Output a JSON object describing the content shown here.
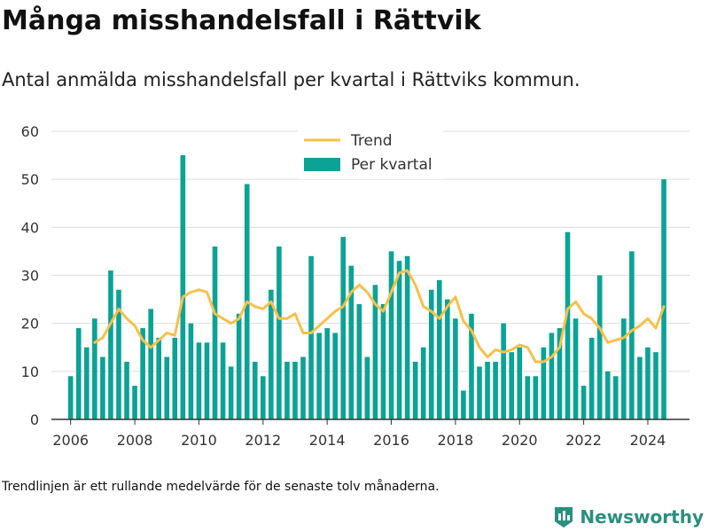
{
  "title": "Många misshandelsfall i Rättvik",
  "subtitle": "Antal anmälda misshandelsfall per kvartal i Rättviks kommun.",
  "footnote": "Trendlinjen är ett rullande medelvärde för de senaste tolv månaderna.",
  "brand": {
    "name": "Newsworthy",
    "icon": "bar-chart-logo-icon"
  },
  "colors": {
    "bars": "#0aa395",
    "trend": "#f7c04a",
    "grid": "#dddddd",
    "axis": "#333333"
  },
  "chart_data": {
    "type": "bar",
    "legend_position": "top-center",
    "grid": true,
    "ylim": [
      0,
      60
    ],
    "yticks": [
      0,
      10,
      20,
      30,
      40,
      50,
      60
    ],
    "xlim": [
      2005.4,
      2025.3
    ],
    "xticks": [
      2006,
      2008,
      2010,
      2012,
      2014,
      2016,
      2018,
      2020,
      2022,
      2024
    ],
    "legend": [
      "Trend",
      "Per kvartal"
    ],
    "series": [
      {
        "name": "Per kvartal",
        "type": "bar",
        "x": [
          2006.0,
          2006.25,
          2006.5,
          2006.75,
          2007.0,
          2007.25,
          2007.5,
          2007.75,
          2008.0,
          2008.25,
          2008.5,
          2008.75,
          2009.0,
          2009.25,
          2009.5,
          2009.75,
          2010.0,
          2010.25,
          2010.5,
          2010.75,
          2011.0,
          2011.25,
          2011.5,
          2011.75,
          2012.0,
          2012.25,
          2012.5,
          2012.75,
          2013.0,
          2013.25,
          2013.5,
          2013.75,
          2014.0,
          2014.25,
          2014.5,
          2014.75,
          2015.0,
          2015.25,
          2015.5,
          2015.75,
          2016.0,
          2016.25,
          2016.5,
          2016.75,
          2017.0,
          2017.25,
          2017.5,
          2017.75,
          2018.0,
          2018.25,
          2018.5,
          2018.75,
          2019.0,
          2019.25,
          2019.5,
          2019.75,
          2020.0,
          2020.25,
          2020.5,
          2020.75,
          2021.0,
          2021.25,
          2021.5,
          2021.75,
          2022.0,
          2022.25,
          2022.5,
          2022.75,
          2023.0,
          2023.25,
          2023.5,
          2023.75,
          2024.0,
          2024.25,
          2024.5
        ],
        "values": [
          9,
          19,
          15,
          21,
          13,
          31,
          27,
          12,
          7,
          19,
          23,
          17,
          13,
          17,
          55,
          20,
          16,
          16,
          36,
          16,
          11,
          22,
          49,
          12,
          9,
          27,
          36,
          12,
          12,
          13,
          34,
          18,
          19,
          18,
          38,
          32,
          24,
          13,
          28,
          24,
          35,
          33,
          34,
          12,
          15,
          27,
          29,
          25,
          21,
          6,
          22,
          11,
          12,
          12,
          20,
          14,
          15,
          9,
          9,
          15,
          18,
          19,
          39,
          21,
          7,
          17,
          30,
          10,
          9,
          21,
          35,
          13,
          15,
          14,
          50
        ]
      },
      {
        "name": "Trend",
        "type": "line",
        "x": [
          2006.75,
          2007.0,
          2007.25,
          2007.5,
          2007.75,
          2008.0,
          2008.25,
          2008.5,
          2008.75,
          2009.0,
          2009.25,
          2009.5,
          2009.75,
          2010.0,
          2010.25,
          2010.5,
          2010.75,
          2011.0,
          2011.25,
          2011.5,
          2011.75,
          2012.0,
          2012.25,
          2012.5,
          2012.75,
          2013.0,
          2013.25,
          2013.5,
          2013.75,
          2014.0,
          2014.25,
          2014.5,
          2014.75,
          2015.0,
          2015.25,
          2015.5,
          2015.75,
          2016.0,
          2016.25,
          2016.5,
          2016.75,
          2017.0,
          2017.25,
          2017.5,
          2017.75,
          2018.0,
          2018.25,
          2018.5,
          2018.75,
          2019.0,
          2019.25,
          2019.5,
          2019.75,
          2020.0,
          2020.25,
          2020.5,
          2020.75,
          2021.0,
          2021.25,
          2021.5,
          2021.75,
          2022.0,
          2022.25,
          2022.5,
          2022.75,
          2023.0,
          2023.25,
          2023.5,
          2023.75,
          2024.0,
          2024.25,
          2024.5
        ],
        "values": [
          16,
          17,
          20,
          23,
          21,
          19.5,
          16.5,
          15,
          16.5,
          18,
          17.5,
          25.5,
          26.5,
          27,
          26.5,
          22,
          21,
          20,
          21,
          24.5,
          23.5,
          23,
          24.5,
          21,
          21,
          22,
          18,
          18,
          19.5,
          21,
          22.5,
          23.5,
          26.5,
          28,
          26.5,
          24,
          22.5,
          26.5,
          30.5,
          31,
          28,
          23.5,
          22.5,
          21,
          23.5,
          25.5,
          20.5,
          18.5,
          15,
          13,
          14.5,
          14,
          14.5,
          15.5,
          15,
          12,
          12,
          13,
          15,
          23,
          24.5,
          22,
          21,
          19,
          16,
          16.5,
          17,
          18.5,
          19.5,
          21,
          19,
          23.5
        ]
      }
    ]
  }
}
